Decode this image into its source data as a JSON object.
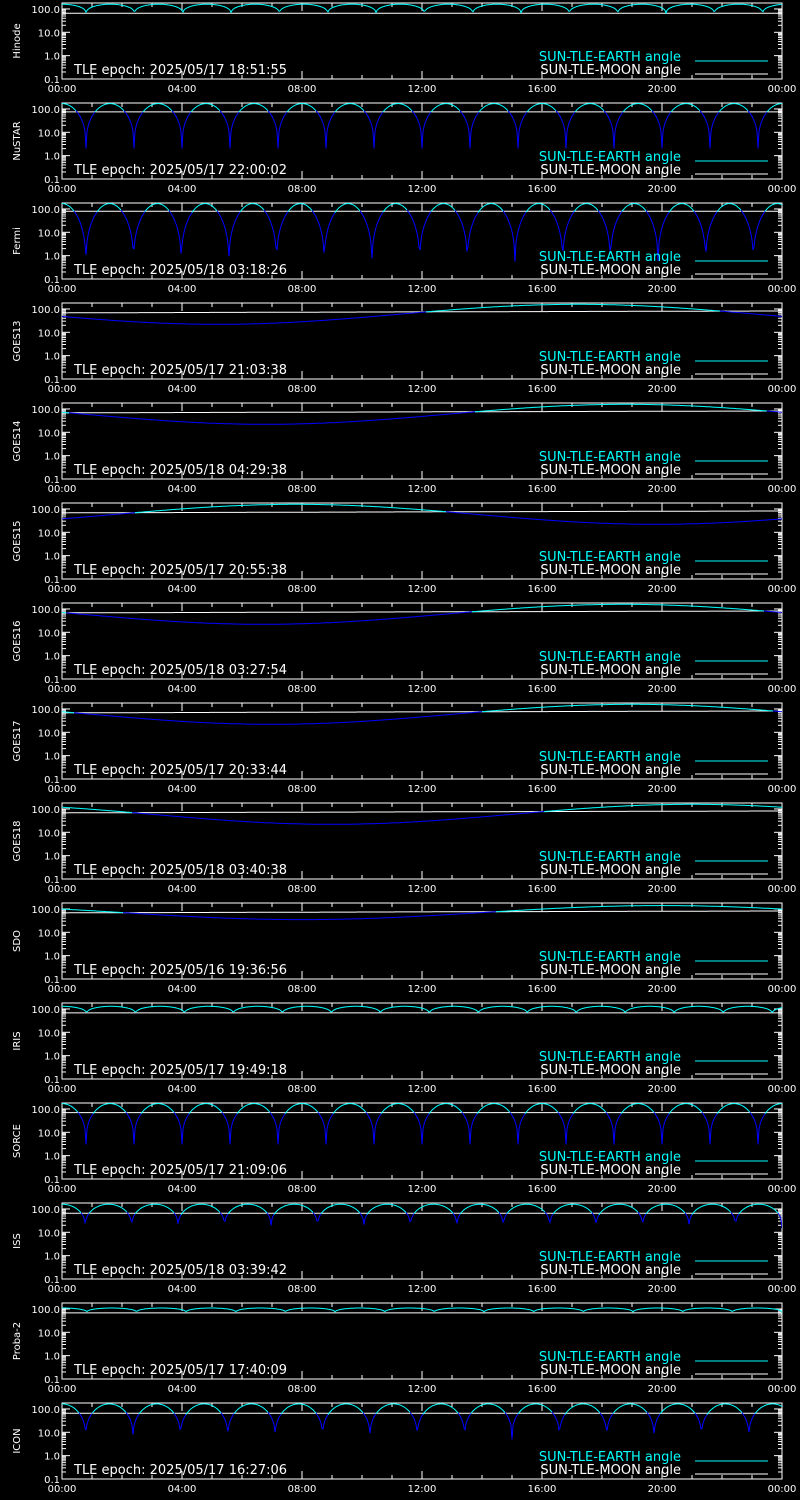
{
  "colors": {
    "background": "#000000",
    "axes": "#ffffff",
    "earth": "#00ffff",
    "moon": "#ffffff",
    "dip": "#0000ff"
  },
  "legend": {
    "earth_label": "SUN-TLE-EARTH angle",
    "moon_label": "SUN-TLE-MOON angle",
    "placement": "bottom-right"
  },
  "x_tick_labels": [
    "00:00",
    "04:00",
    "08:00",
    "12:00",
    "16:00",
    "20:00",
    "00:00"
  ],
  "y_tick_labels": [
    "100.0",
    "10.0",
    "1.0",
    "0.1"
  ],
  "chart_data": [
    {
      "type": "line",
      "satellite": "Hinode",
      "tle_epoch": "TLE epoch: 2025/05/17 18:51:55",
      "x_range_hours": [
        0,
        24
      ],
      "ylim": [
        0.1,
        180
      ],
      "y_scale": "log",
      "pattern": "orbital",
      "orbits_per_day": 14.9,
      "earth_peak_deg": 160,
      "earth_trough_deg": 60,
      "moon_deg": 65
    },
    {
      "type": "line",
      "satellite": "NuSTAR",
      "tle_epoch": "TLE epoch: 2025/05/17 22:00:02",
      "x_range_hours": [
        0,
        24
      ],
      "ylim": [
        0.1,
        180
      ],
      "y_scale": "log",
      "pattern": "orbital",
      "orbits_per_day": 15.0,
      "earth_peak_deg": 170,
      "earth_trough_deg": 2,
      "moon_deg": 75
    },
    {
      "type": "line",
      "satellite": "Fermi",
      "tle_epoch": "TLE epoch: 2025/05/18 03:18:26",
      "x_range_hours": [
        0,
        24
      ],
      "ylim": [
        0.1,
        180
      ],
      "y_scale": "log",
      "pattern": "orbital",
      "orbits_per_day": 15.1,
      "earth_peak_deg": 170,
      "earth_trough_deg": 0.3,
      "moon_deg": 80
    },
    {
      "type": "line",
      "satellite": "GOES13",
      "tle_epoch": "TLE epoch: 2025/05/17 21:03:38",
      "x_range_hours": [
        0,
        24
      ],
      "ylim": [
        0.1,
        180
      ],
      "y_scale": "log",
      "pattern": "geo",
      "dip_hour": 5.2,
      "earth_min_deg": 22,
      "earth_max_deg": 158,
      "moon_start_deg": 68,
      "moon_end_deg": 82
    },
    {
      "type": "line",
      "satellite": "GOES14",
      "tle_epoch": "TLE epoch: 2025/05/18 04:29:38",
      "x_range_hours": [
        0,
        24
      ],
      "ylim": [
        0.1,
        180
      ],
      "y_scale": "log",
      "pattern": "geo",
      "dip_hour": 6.8,
      "earth_min_deg": 22,
      "earth_max_deg": 158,
      "moon_start_deg": 68,
      "moon_end_deg": 82
    },
    {
      "type": "line",
      "satellite": "GOES15",
      "tle_epoch": "TLE epoch: 2025/05/17 20:55:38",
      "x_range_hours": [
        0,
        24
      ],
      "ylim": [
        0.1,
        180
      ],
      "y_scale": "log",
      "pattern": "geo",
      "dip_hour": 19.8,
      "earth_min_deg": 22,
      "earth_max_deg": 158,
      "moon_start_deg": 68,
      "moon_end_deg": 82
    },
    {
      "type": "line",
      "satellite": "GOES16",
      "tle_epoch": "TLE epoch: 2025/05/18 03:27:54",
      "x_range_hours": [
        0,
        24
      ],
      "ylim": [
        0.1,
        180
      ],
      "y_scale": "log",
      "pattern": "geo",
      "dip_hour": 6.7,
      "earth_min_deg": 22,
      "earth_max_deg": 158,
      "moon_start_deg": 68,
      "moon_end_deg": 82
    },
    {
      "type": "line",
      "satellite": "GOES17",
      "tle_epoch": "TLE epoch: 2025/05/17 20:33:44",
      "x_range_hours": [
        0,
        24
      ],
      "ylim": [
        0.1,
        180
      ],
      "y_scale": "log",
      "pattern": "geo",
      "dip_hour": 7.0,
      "earth_min_deg": 22,
      "earth_max_deg": 158,
      "moon_start_deg": 68,
      "moon_end_deg": 82
    },
    {
      "type": "line",
      "satellite": "GOES18",
      "tle_epoch": "TLE epoch: 2025/05/18 03:40:38",
      "x_range_hours": [
        0,
        24
      ],
      "ylim": [
        0.1,
        180
      ],
      "y_scale": "log",
      "pattern": "geo",
      "dip_hour": 9.0,
      "earth_min_deg": 22,
      "earth_max_deg": 158,
      "moon_start_deg": 68,
      "moon_end_deg": 82
    },
    {
      "type": "line",
      "satellite": "SDO",
      "tle_epoch": "TLE epoch: 2025/05/16 19:36:56",
      "x_range_hours": [
        0,
        24
      ],
      "ylim": [
        0.1,
        180
      ],
      "y_scale": "log",
      "pattern": "geo",
      "dip_hour": 8.0,
      "earth_min_deg": 35,
      "earth_max_deg": 140,
      "moon_start_deg": 68,
      "moon_end_deg": 82
    },
    {
      "type": "line",
      "satellite": "IRIS",
      "tle_epoch": "TLE epoch: 2025/05/17 19:49:18",
      "x_range_hours": [
        0,
        24
      ],
      "ylim": [
        0.1,
        180
      ],
      "y_scale": "log",
      "pattern": "orbital",
      "orbits_per_day": 14.7,
      "earth_peak_deg": 130,
      "earth_trough_deg": 60,
      "moon_deg": 68
    },
    {
      "type": "line",
      "satellite": "SORCE",
      "tle_epoch": "TLE epoch: 2025/05/17 21:09:06",
      "x_range_hours": [
        0,
        24
      ],
      "ylim": [
        0.1,
        180
      ],
      "y_scale": "log",
      "pattern": "orbital",
      "orbits_per_day": 15.0,
      "earth_peak_deg": 170,
      "earth_trough_deg": 3,
      "moon_deg": 70
    },
    {
      "type": "line",
      "satellite": "ISS",
      "tle_epoch": "TLE epoch: 2025/05/18 03:39:42",
      "x_range_hours": [
        0,
        24
      ],
      "ylim": [
        0.1,
        180
      ],
      "y_scale": "log",
      "pattern": "orbital",
      "orbits_per_day": 15.5,
      "earth_peak_deg": 160,
      "earth_trough_deg": 15,
      "moon_deg": 65
    },
    {
      "type": "line",
      "satellite": "Proba-2",
      "tle_epoch": "TLE epoch: 2025/05/17 17:40:09",
      "x_range_hours": [
        0,
        24
      ],
      "ylim": [
        0.1,
        180
      ],
      "y_scale": "log",
      "pattern": "orbital",
      "orbits_per_day": 14.5,
      "earth_peak_deg": 110,
      "earth_trough_deg": 70,
      "moon_deg": 68
    },
    {
      "type": "line",
      "satellite": "ICON",
      "tle_epoch": "TLE epoch: 2025/05/17 16:27:06",
      "x_range_hours": [
        0,
        24
      ],
      "ylim": [
        0.1,
        180
      ],
      "y_scale": "log",
      "pattern": "orbital",
      "orbits_per_day": 15.2,
      "earth_peak_deg": 165,
      "earth_trough_deg": 5,
      "moon_deg": 65
    }
  ]
}
